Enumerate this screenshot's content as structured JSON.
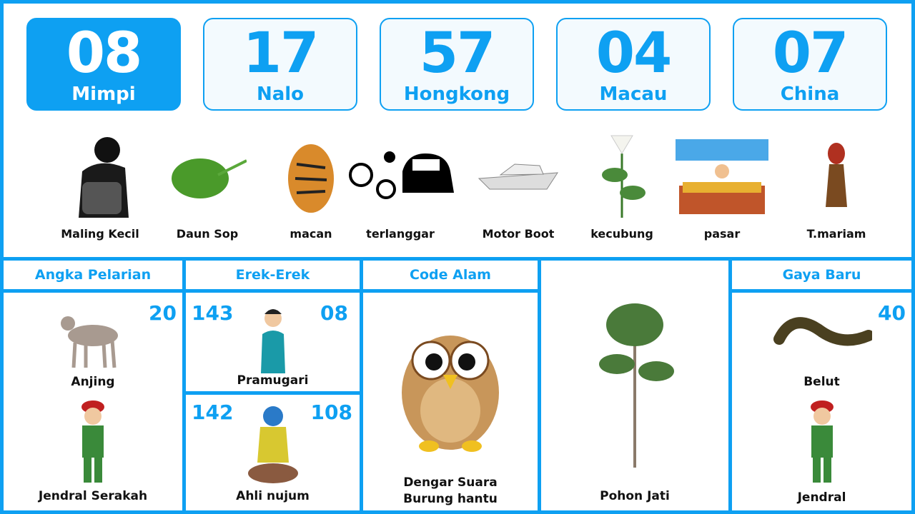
{
  "numbers": [
    {
      "value": "08",
      "label": "Mimpi"
    },
    {
      "value": "17",
      "label": "Nalo"
    },
    {
      "value": "57",
      "label": "Hongkong"
    },
    {
      "value": "04",
      "label": "Macau"
    },
    {
      "value": "07",
      "label": "China"
    }
  ],
  "dream_items": [
    "Maling Kecil",
    "Daun Sop",
    "macan",
    "terlanggar",
    "Motor Boot",
    "kecubung",
    "pasar",
    "T.mariam"
  ],
  "angka_pelarian": {
    "title": "Angka Pelarian",
    "number": "20",
    "top_caption": "Anjing",
    "bottom_caption": "Jendral Serakah"
  },
  "erek_erek": {
    "title": "Erek-Erek",
    "top": {
      "left": "143",
      "right": "08",
      "caption": "Pramugari"
    },
    "bottom": {
      "left": "142",
      "right": "108",
      "caption": "Ahli nujum"
    }
  },
  "code_alam": {
    "title": "Code Alam",
    "caption": "Dengar Suara Burung hantu"
  },
  "pohon": {
    "caption": "Pohon Jati"
  },
  "gaya_baru": {
    "title": "Gaya Baru",
    "number": "40",
    "top_caption": "Belut",
    "bottom_caption": "Jendral"
  },
  "colors": {
    "accent": "#0ea0f2"
  }
}
